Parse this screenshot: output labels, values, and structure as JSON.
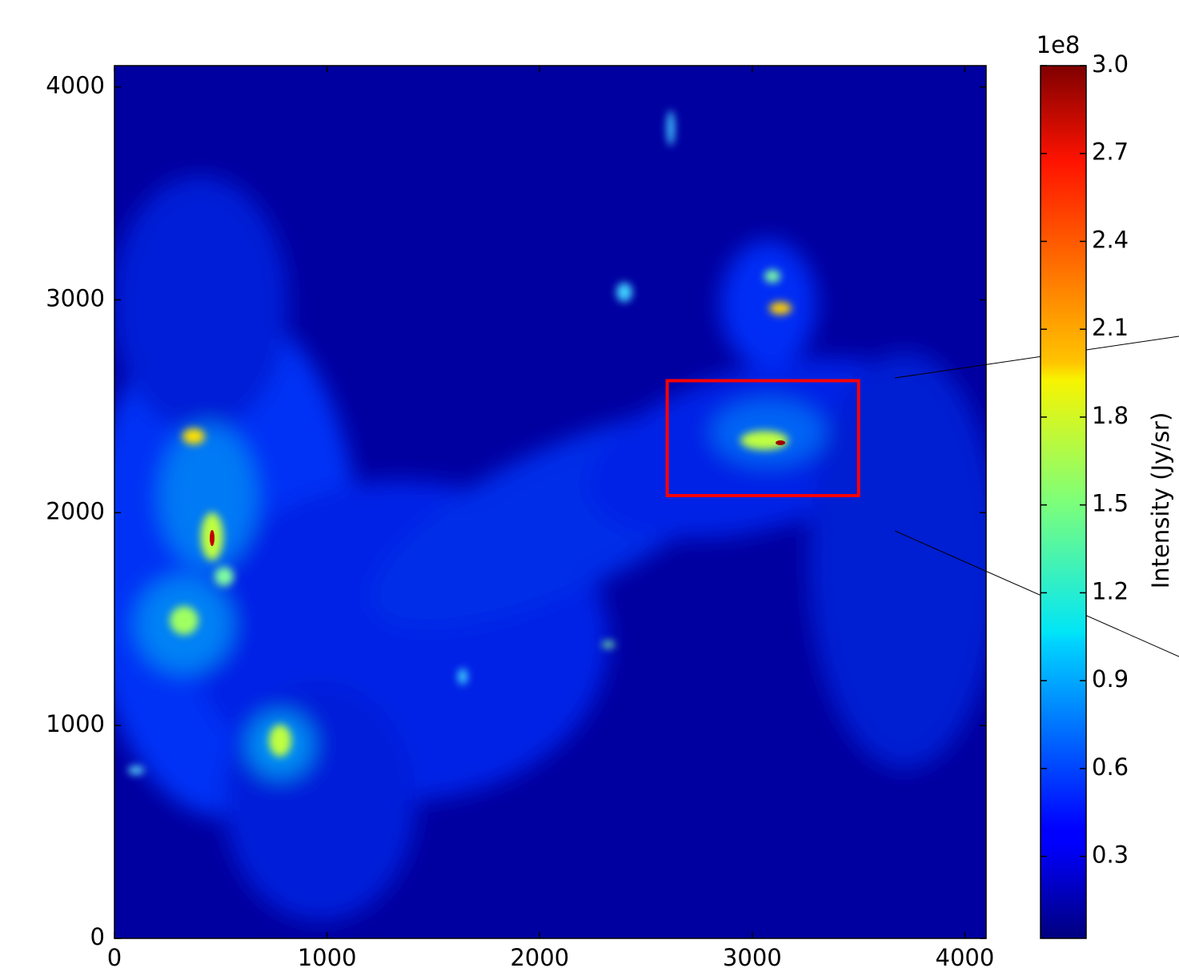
{
  "chart_data": {
    "type": "heatmap",
    "colormap": "jet",
    "xlim": [
      0,
      4100
    ],
    "ylim": [
      0,
      4100
    ],
    "xticks": [
      0,
      1000,
      2000,
      3000,
      4000
    ],
    "yticks": [
      0,
      1000,
      2000,
      3000,
      4000
    ],
    "colorbar": {
      "label": "Intensity (Jy/sr)",
      "offset_label": "1e8",
      "clim": [
        0.02,
        3.0
      ],
      "ticks": [
        0.3,
        0.6,
        0.9,
        1.2,
        1.5,
        1.8,
        2.1,
        2.4,
        2.7,
        {
          "value": 3,
          "label": "3.0"
        }
      ]
    },
    "highlight_box": {
      "x": [
        2600,
        3500
      ],
      "y": [
        2080,
        2620
      ],
      "color": "#ff0000"
    }
  }
}
